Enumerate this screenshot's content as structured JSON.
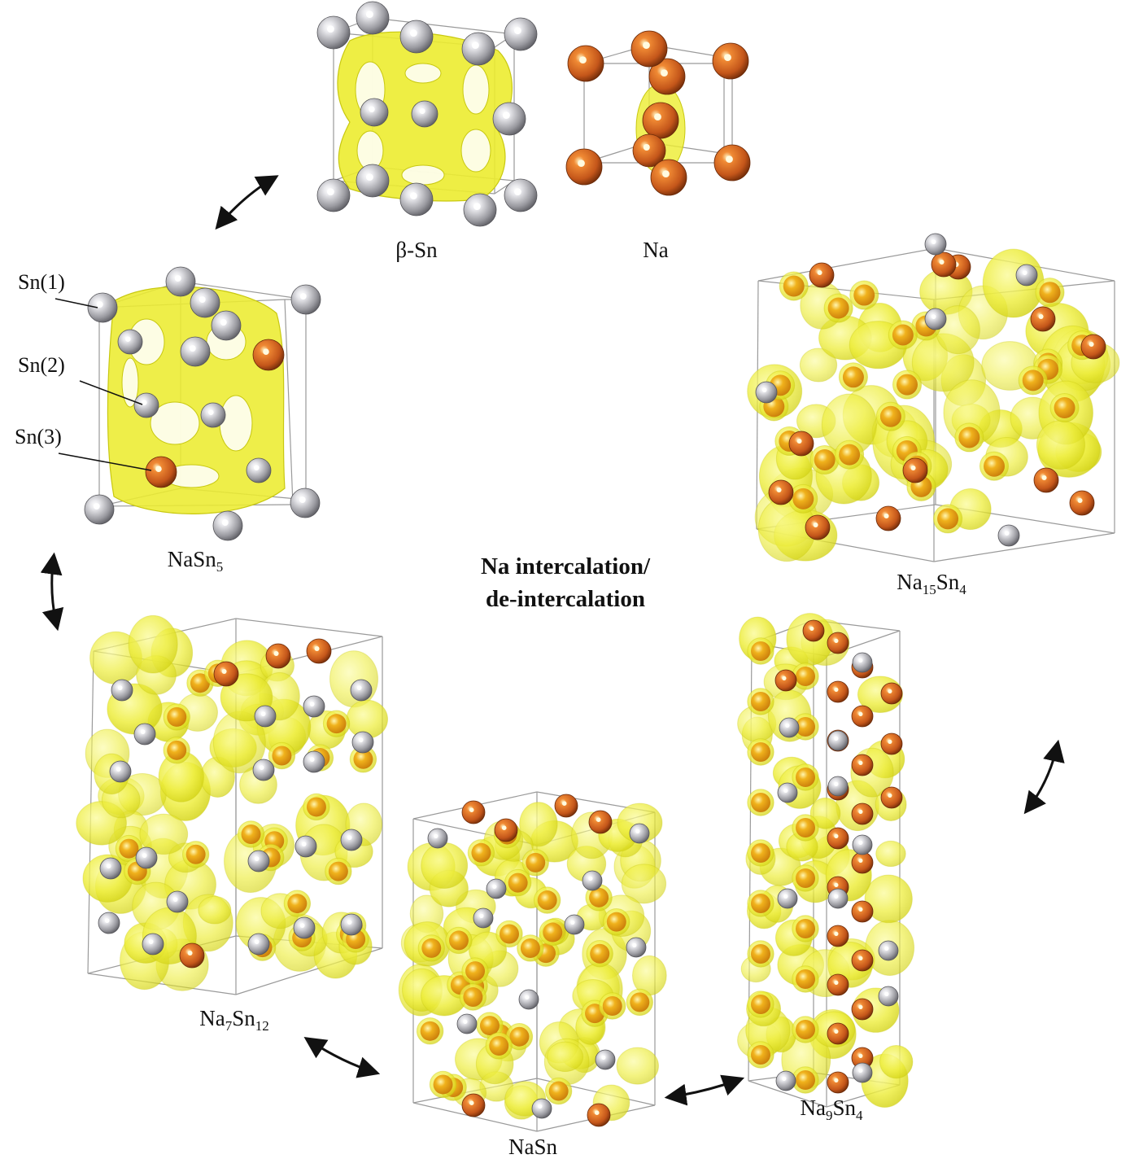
{
  "center_label": {
    "line1": "Na intercalation/",
    "line2": "de-intercalation"
  },
  "structures": [
    {
      "id": "beta-sn",
      "formula": [
        {
          "t": "β-Sn"
        }
      ]
    },
    {
      "id": "na",
      "formula": [
        {
          "t": "Na"
        }
      ]
    },
    {
      "id": "nasn5",
      "formula": [
        {
          "t": "NaSn"
        },
        {
          "t": "5",
          "sub": true
        }
      ]
    },
    {
      "id": "na15sn4",
      "formula": [
        {
          "t": "Na"
        },
        {
          "t": "15",
          "sub": true
        },
        {
          "t": "Sn"
        },
        {
          "t": "4",
          "sub": true
        }
      ]
    },
    {
      "id": "na7sn12",
      "formula": [
        {
          "t": "Na"
        },
        {
          "t": "7",
          "sub": true
        },
        {
          "t": "Sn"
        },
        {
          "t": "12",
          "sub": true
        }
      ]
    },
    {
      "id": "nasn",
      "formula": [
        {
          "t": "NaSn"
        }
      ]
    },
    {
      "id": "na9sn4",
      "formula": [
        {
          "t": "Na"
        },
        {
          "t": "9",
          "sub": true
        },
        {
          "t": "Sn"
        },
        {
          "t": "4",
          "sub": true
        }
      ]
    }
  ],
  "site_labels": {
    "sn1": "Sn(1)",
    "sn2": "Sn(2)",
    "sn3": "Sn(3)"
  },
  "colors": {
    "sn_atom": "#a8a8ae",
    "na_atom": "#c4561a",
    "isosurface": "#e8e81c",
    "cell_edge": "#9a9a9a",
    "arrow": "#111111"
  },
  "icons": {
    "cycle_arrow": "double-headed-arrow"
  }
}
